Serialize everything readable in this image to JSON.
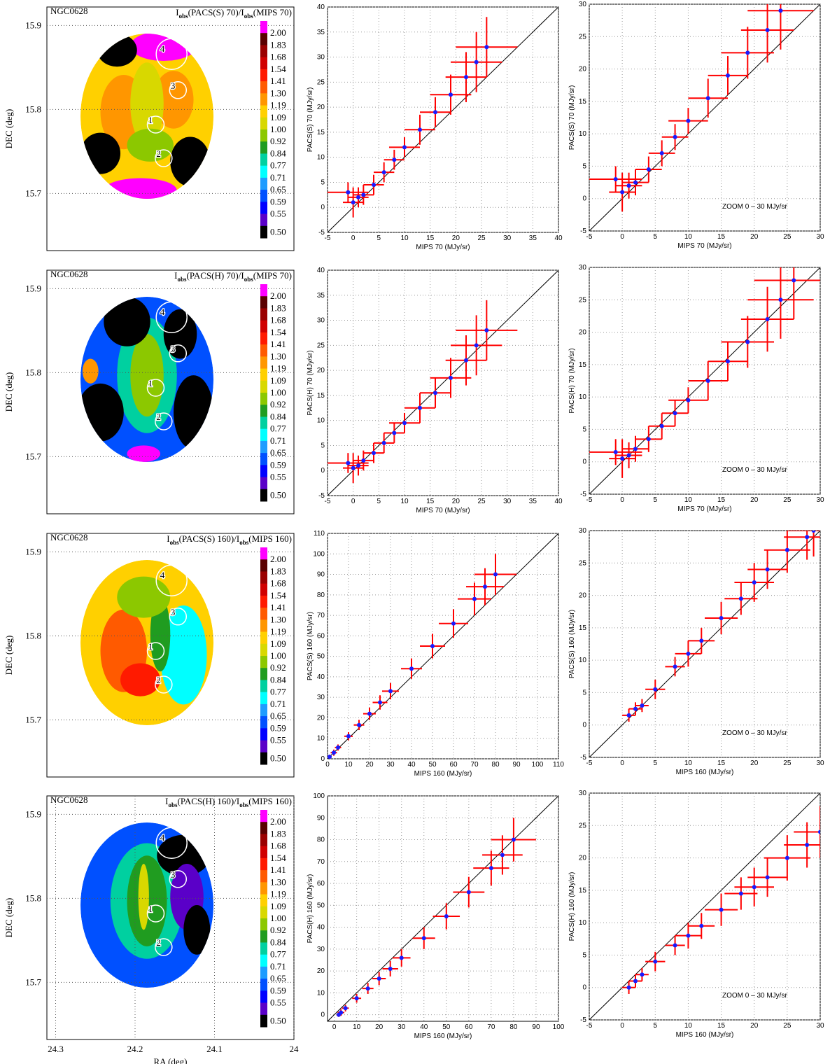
{
  "chart_data": [
    {
      "type": "heatmap",
      "title": "NGC0628",
      "ratio_label": [
        "I",
        "obs",
        "(PACS(S) 70)/I",
        "obs",
        "(MIPS 70)"
      ],
      "ylabel": "DEC (deg)",
      "ylim": [
        15.632,
        15.922
      ],
      "yticks": [
        15.7,
        15.8,
        15.9
      ],
      "xlim": [
        24.311,
        24.0
      ],
      "colorbar": {
        "labels": [
          "2.00",
          "1.83",
          "1.68",
          "1.54",
          "1.41",
          "1.30",
          "1.19",
          "1.09",
          "1.00",
          "0.92",
          "0.84",
          "0.77",
          "0.71",
          "0.65",
          "0.59",
          "0.55",
          "0.50"
        ],
        "colors": [
          "#ff00ff",
          "#5a0000",
          "#9a0000",
          "#d00000",
          "#ff1a00",
          "#ff5a00",
          "#ff9600",
          "#ffd000",
          "#d8d800",
          "#8cc800",
          "#209c20",
          "#00d0a0",
          "#00ffff",
          "#1e9cff",
          "#0050ff",
          "#0000ff",
          "#5a00c8",
          "#000000"
        ]
      },
      "regions": [
        {
          "label": "1",
          "ra": 24.174,
          "dec": 15.782
        },
        {
          "label": "2",
          "ra": 24.164,
          "dec": 15.742
        },
        {
          "label": "3",
          "ra": 24.146,
          "dec": 15.823
        },
        {
          "label": "4",
          "ra": 24.154,
          "dec": 15.866
        }
      ]
    },
    {
      "type": "scatter",
      "xlabel": "MIPS 70 (MJy/sr)",
      "ylabel": "PACS(S) 70 (MJy/sr)",
      "xlim": [
        -5,
        40
      ],
      "ylim": [
        -5,
        40
      ],
      "xticks": [
        -5,
        0,
        5,
        10,
        15,
        20,
        25,
        30,
        35,
        40
      ],
      "yticks": [
        -5,
        0,
        5,
        10,
        15,
        20,
        25,
        30,
        35,
        40
      ],
      "diagonal": true,
      "point_color": "#1a1aff",
      "error_color": "#ff0000",
      "x": [
        -1,
        0,
        1,
        2,
        4,
        6,
        8,
        10,
        13,
        16,
        19,
        22,
        24,
        26
      ],
      "y": [
        3,
        1,
        2,
        2.5,
        4.5,
        7,
        9.5,
        12,
        15.5,
        19,
        22.5,
        26,
        29,
        32
      ],
      "xerr": [
        4,
        2,
        2,
        2,
        2,
        2,
        2,
        3,
        3,
        3,
        4,
        4,
        5,
        6
      ],
      "yerr": [
        2,
        3,
        2,
        2,
        2,
        2,
        2,
        2,
        3,
        3,
        4,
        5,
        6,
        6
      ]
    },
    {
      "type": "scatter",
      "xlabel": "MIPS 70 (MJy/sr)",
      "ylabel": "PACS(S) 70 (MJy/sr)",
      "annotation": "ZOOM 0 – 30 MJy/sr",
      "xlim": [
        -5,
        30
      ],
      "ylim": [
        -5,
        30
      ],
      "xticks": [
        -5,
        0,
        5,
        10,
        15,
        20,
        25,
        30
      ],
      "yticks": [
        -5,
        0,
        5,
        10,
        15,
        20,
        25,
        30
      ],
      "diagonal": true,
      "point_color": "#1a1aff",
      "error_color": "#ff0000",
      "x": [
        -1,
        0,
        1,
        2,
        4,
        6,
        8,
        10,
        13,
        16,
        19,
        22,
        24
      ],
      "y": [
        3,
        1,
        2,
        2.5,
        4.5,
        7,
        9.5,
        12,
        15.5,
        19,
        22.5,
        26,
        29
      ],
      "xerr": [
        4,
        2,
        2,
        2,
        2,
        2,
        2,
        3,
        3,
        3,
        4,
        4,
        5
      ],
      "yerr": [
        2,
        3,
        2,
        2,
        2,
        2,
        2,
        2,
        3,
        3,
        4,
        5,
        6
      ]
    },
    {
      "type": "heatmap",
      "title": "NGC0628",
      "ratio_label": [
        "I",
        "obs",
        "(PACS(H) 70)/I",
        "obs",
        "(MIPS 70)"
      ],
      "ylabel": "DEC (deg)",
      "ylim": [
        15.632,
        15.922
      ],
      "yticks": [
        15.7,
        15.8,
        15.9
      ],
      "xlim": [
        24.311,
        24.0
      ],
      "colorbar": {
        "labels": [
          "2.00",
          "1.83",
          "1.68",
          "1.54",
          "1.41",
          "1.30",
          "1.19",
          "1.09",
          "1.00",
          "0.92",
          "0.84",
          "0.77",
          "0.71",
          "0.65",
          "0.59",
          "0.55",
          "0.50"
        ],
        "colors": [
          "#ff00ff",
          "#5a0000",
          "#9a0000",
          "#d00000",
          "#ff1a00",
          "#ff5a00",
          "#ff9600",
          "#ffd000",
          "#d8d800",
          "#8cc800",
          "#209c20",
          "#00d0a0",
          "#00ffff",
          "#1e9cff",
          "#0050ff",
          "#0000ff",
          "#5a00c8",
          "#000000"
        ]
      },
      "regions": [
        {
          "label": "1",
          "ra": 24.174,
          "dec": 15.782
        },
        {
          "label": "2",
          "ra": 24.164,
          "dec": 15.742
        },
        {
          "label": "3",
          "ra": 24.146,
          "dec": 15.823
        },
        {
          "label": "4",
          "ra": 24.154,
          "dec": 15.866
        }
      ]
    },
    {
      "type": "scatter",
      "xlabel": "MIPS 70 (MJy/sr)",
      "ylabel": "PACS(H) 70 (MJy/sr)",
      "xlim": [
        -5,
        40
      ],
      "ylim": [
        -5,
        40
      ],
      "xticks": [
        -5,
        0,
        5,
        10,
        15,
        20,
        25,
        30,
        35,
        40
      ],
      "yticks": [
        -5,
        0,
        5,
        10,
        15,
        20,
        25,
        30,
        35,
        40
      ],
      "diagonal": true,
      "point_color": "#1a1aff",
      "error_color": "#ff0000",
      "x": [
        -1,
        0,
        1,
        2,
        4,
        6,
        8,
        10,
        13,
        16,
        19,
        22,
        24,
        26
      ],
      "y": [
        1.5,
        0.5,
        1,
        2,
        3.5,
        5.5,
        7.5,
        9.5,
        12.5,
        15.5,
        18.5,
        22,
        25,
        28
      ],
      "xerr": [
        4,
        2,
        2,
        2,
        2,
        2,
        2,
        3,
        3,
        3,
        4,
        4,
        5,
        6
      ],
      "yerr": [
        2,
        3,
        2,
        2,
        2,
        2,
        2,
        2,
        3,
        3,
        4,
        5,
        6,
        6
      ]
    },
    {
      "type": "scatter",
      "xlabel": "MIPS 70 (MJy/sr)",
      "ylabel": "PACS(H) 70 (MJy/sr)",
      "annotation": "ZOOM 0 – 30 MJy/sr",
      "xlim": [
        -5,
        30
      ],
      "ylim": [
        -5,
        30
      ],
      "xticks": [
        -5,
        0,
        5,
        10,
        15,
        20,
        25,
        30
      ],
      "yticks": [
        -5,
        0,
        5,
        10,
        15,
        20,
        25,
        30
      ],
      "diagonal": true,
      "point_color": "#1a1aff",
      "error_color": "#ff0000",
      "x": [
        -1,
        0,
        1,
        2,
        4,
        6,
        8,
        10,
        13,
        16,
        19,
        22,
        24,
        26
      ],
      "y": [
        1.5,
        0.5,
        1,
        2,
        3.5,
        5.5,
        7.5,
        9.5,
        12.5,
        15.5,
        18.5,
        22,
        25,
        28
      ],
      "xerr": [
        4,
        2,
        2,
        2,
        2,
        2,
        2,
        3,
        3,
        3,
        4,
        4,
        5,
        6
      ],
      "yerr": [
        2,
        3,
        2,
        2,
        2,
        2,
        2,
        2,
        3,
        3,
        4,
        5,
        6,
        6
      ]
    },
    {
      "type": "heatmap",
      "title": "NGC0628",
      "ratio_label": [
        "I",
        "obs",
        "(PACS(S) 160)/I",
        "obs",
        "(MIPS 160)"
      ],
      "ylabel": "DEC (deg)",
      "ylim": [
        15.632,
        15.922
      ],
      "yticks": [
        15.7,
        15.8,
        15.9
      ],
      "xlim": [
        24.311,
        24.0
      ],
      "colorbar": {
        "labels": [
          "2.00",
          "1.83",
          "1.68",
          "1.54",
          "1.41",
          "1.30",
          "1.19",
          "1.09",
          "1.00",
          "0.92",
          "0.84",
          "0.77",
          "0.71",
          "0.65",
          "0.59",
          "0.55",
          "0.50"
        ],
        "colors": [
          "#ff00ff",
          "#5a0000",
          "#9a0000",
          "#d00000",
          "#ff1a00",
          "#ff5a00",
          "#ff9600",
          "#ffd000",
          "#d8d800",
          "#8cc800",
          "#209c20",
          "#00d0a0",
          "#00ffff",
          "#1e9cff",
          "#0050ff",
          "#0000ff",
          "#5a00c8",
          "#000000"
        ]
      },
      "regions": [
        {
          "label": "1",
          "ra": 24.174,
          "dec": 15.782
        },
        {
          "label": "2",
          "ra": 24.164,
          "dec": 15.742
        },
        {
          "label": "3",
          "ra": 24.146,
          "dec": 15.823
        },
        {
          "label": "4",
          "ra": 24.154,
          "dec": 15.866
        }
      ]
    },
    {
      "type": "scatter",
      "xlabel": "MIPS 160 (MJy/sr)",
      "ylabel": "PACS(S) 160 (MJy/sr)",
      "xlim": [
        0,
        110
      ],
      "ylim": [
        0,
        110
      ],
      "xticks": [
        0,
        10,
        20,
        30,
        40,
        50,
        60,
        70,
        80,
        90,
        100,
        110
      ],
      "yticks": [
        0,
        10,
        20,
        30,
        40,
        50,
        60,
        70,
        80,
        90,
        100,
        110
      ],
      "diagonal": true,
      "point_color": "#1a1aff",
      "error_color": "#ff0000",
      "x": [
        1,
        3,
        5,
        10,
        15,
        20,
        25,
        30,
        40,
        50,
        60,
        70,
        75,
        80
      ],
      "y": [
        1,
        3,
        5.5,
        11,
        16.5,
        22,
        27.5,
        33,
        44,
        55,
        66,
        78,
        84,
        90
      ],
      "xerr": [
        1,
        1.5,
        1.5,
        2,
        2.5,
        3,
        3.5,
        4,
        5,
        6,
        7,
        8,
        9,
        10
      ],
      "yerr": [
        1,
        1.5,
        1.5,
        2,
        2.5,
        3,
        3.5,
        4,
        5,
        6,
        7,
        8,
        9,
        10
      ]
    },
    {
      "type": "scatter",
      "xlabel": "MIPS 160 (MJy/sr)",
      "ylabel": "PACS(S) 160 (MJy/sr)",
      "annotation": "ZOOM 0 – 30 MJy/sr",
      "xlim": [
        -5,
        30
      ],
      "ylim": [
        -5,
        30
      ],
      "xticks": [
        -5,
        0,
        5,
        10,
        15,
        20,
        25,
        30
      ],
      "yticks": [
        -5,
        0,
        5,
        10,
        15,
        20,
        25,
        30
      ],
      "diagonal": true,
      "point_color": "#1a1aff",
      "error_color": "#ff0000",
      "x": [
        1,
        2,
        3,
        5,
        8,
        10,
        12,
        15,
        18,
        20,
        22,
        25,
        28,
        29
      ],
      "y": [
        1.5,
        2.5,
        3,
        5.5,
        9,
        11,
        13,
        16.5,
        19.5,
        22,
        24,
        27,
        29,
        30
      ],
      "xerr": [
        1,
        1,
        1,
        1.5,
        1.5,
        2,
        2,
        2.5,
        2.5,
        3,
        3,
        3.5,
        3.5,
        4
      ],
      "yerr": [
        1,
        1,
        1,
        1.5,
        1.5,
        2,
        2,
        2.5,
        2.5,
        3,
        3,
        3.5,
        3.5,
        4
      ]
    },
    {
      "type": "heatmap",
      "title": "NGC0628",
      "ratio_label": [
        "I",
        "obs",
        "(PACS(H) 160)/I",
        "obs",
        "(MIPS 160)"
      ],
      "xlabel": "RA (deg)",
      "ylabel": "DEC (deg)",
      "ylim": [
        15.632,
        15.922
      ],
      "yticks": [
        15.7,
        15.8,
        15.9
      ],
      "xlim": [
        24.311,
        24.0
      ],
      "xticks": [
        24.3,
        24.2,
        24.1,
        24
      ],
      "colorbar": {
        "labels": [
          "2.00",
          "1.83",
          "1.68",
          "1.54",
          "1.41",
          "1.30",
          "1.19",
          "1.09",
          "1.00",
          "0.92",
          "0.84",
          "0.77",
          "0.71",
          "0.65",
          "0.59",
          "0.55",
          "0.50"
        ],
        "colors": [
          "#ff00ff",
          "#5a0000",
          "#9a0000",
          "#d00000",
          "#ff1a00",
          "#ff5a00",
          "#ff9600",
          "#ffd000",
          "#d8d800",
          "#8cc800",
          "#209c20",
          "#00d0a0",
          "#00ffff",
          "#1e9cff",
          "#0050ff",
          "#0000ff",
          "#5a00c8",
          "#000000"
        ]
      },
      "regions": [
        {
          "label": "1",
          "ra": 24.174,
          "dec": 15.782
        },
        {
          "label": "2",
          "ra": 24.164,
          "dec": 15.742
        },
        {
          "label": "3",
          "ra": 24.146,
          "dec": 15.823
        },
        {
          "label": "4",
          "ra": 24.154,
          "dec": 15.866
        }
      ]
    },
    {
      "type": "scatter",
      "xlabel": "MIPS 160 (MJy/sr)",
      "ylabel": "PACS(H) 160 (MJy/sr)",
      "xlim": [
        -3,
        100
      ],
      "ylim": [
        -3,
        100
      ],
      "xticks": [
        0,
        10,
        20,
        30,
        40,
        50,
        60,
        70,
        80,
        90,
        100
      ],
      "yticks": [
        0,
        10,
        20,
        30,
        40,
        50,
        60,
        70,
        80,
        90,
        100
      ],
      "diagonal": true,
      "point_color": "#1a1aff",
      "error_color": "#ff0000",
      "x": [
        2,
        3,
        5,
        10,
        15,
        20,
        25,
        30,
        40,
        50,
        60,
        70,
        75,
        80
      ],
      "y": [
        0,
        1,
        3,
        7.5,
        12,
        16.5,
        21,
        26,
        35,
        45,
        56,
        67,
        73,
        80
      ],
      "xerr": [
        1,
        1.5,
        1.5,
        2,
        2.5,
        3,
        3.5,
        4,
        5,
        6,
        7,
        8,
        9,
        10
      ],
      "yerr": [
        1,
        1.5,
        1.5,
        2,
        2.5,
        3,
        3.5,
        4,
        5,
        6,
        7,
        8,
        9,
        10
      ]
    },
    {
      "type": "scatter",
      "xlabel": "MIPS 160 (MJy/sr)",
      "ylabel": "PACS(H) 160 (MJy/sr)",
      "annotation": "ZOOM 0 – 30 MJy/sr",
      "xlim": [
        -5,
        30
      ],
      "ylim": [
        -5,
        30
      ],
      "xticks": [
        -5,
        0,
        5,
        10,
        15,
        20,
        25,
        30
      ],
      "yticks": [
        -5,
        0,
        5,
        10,
        15,
        20,
        25,
        30
      ],
      "diagonal": true,
      "point_color": "#1a1aff",
      "error_color": "#ff0000",
      "x": [
        1,
        2,
        3,
        5,
        8,
        10,
        12,
        15,
        18,
        20,
        22,
        25,
        28,
        30
      ],
      "y": [
        0,
        1,
        2,
        4,
        6.5,
        8,
        9.5,
        12,
        14.5,
        15.5,
        17,
        20,
        22,
        24
      ],
      "xerr": [
        1,
        1,
        1,
        1.5,
        1.5,
        2,
        2,
        2.5,
        2.5,
        3,
        3,
        3.5,
        3.5,
        4
      ],
      "yerr": [
        1,
        1,
        1,
        1.5,
        1.5,
        2,
        2,
        2.5,
        2.5,
        3,
        3,
        3.5,
        3.5,
        4
      ]
    }
  ]
}
